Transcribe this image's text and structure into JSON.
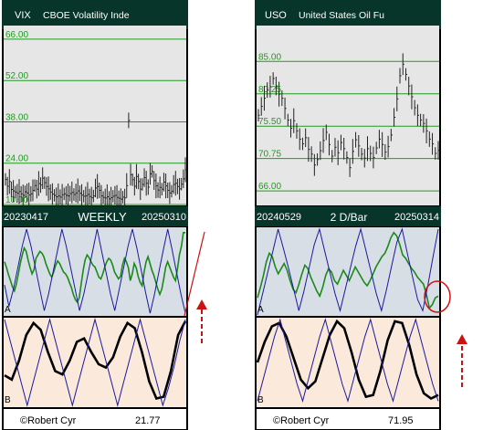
{
  "colors": {
    "price_bg": "#e6e6e6",
    "osc_bg": "#d8dee6",
    "cycle_bg": "#fbe9dc",
    "band": "#08352a",
    "grid": "#1f9c1f",
    "price_line": "#222222",
    "green_line": "#1a8a1a",
    "blue_line": "#1a1a9c",
    "cycle_line": "#000000",
    "annotation": "#cc1111"
  },
  "panels": [
    {
      "id": "vix",
      "symbol": "VIX",
      "name": "CBOE Volatility Inde",
      "start_date": "20230417",
      "period": "WEEKLY",
      "end_date": "20250310",
      "osc_label": "A",
      "cycle_label": "B",
      "credit": "©Robert Cyr",
      "last_value": "21.77"
    },
    {
      "id": "uso",
      "symbol": "USO",
      "name": "United States Oil Fu",
      "start_date": "20240529",
      "period": "2 D/Bar",
      "end_date": "20250314",
      "osc_label": "A",
      "cycle_label": "B",
      "credit": "©Robert Cyr",
      "last_value": "71.95"
    }
  ],
  "chart_data": [
    {
      "type": "bar",
      "panel": "vix",
      "ylim": [
        10,
        70
      ],
      "yticks": [
        "66.00",
        "52.00",
        "38.00",
        "24.00",
        "10.00"
      ],
      "ytick_values": [
        66,
        52,
        38,
        24,
        10
      ],
      "values": [
        18.5,
        16.2,
        17.8,
        15.1,
        14.6,
        14.2,
        13.8,
        14.4,
        13.6,
        13.1,
        14.3,
        13.9,
        13.2,
        13.6,
        14.8,
        16.4,
        15.2,
        17.1,
        16.6,
        18.9,
        17.4,
        16.1,
        15.3,
        14.2,
        13.5,
        13.1,
        12.6,
        12.9,
        12.5,
        13.3,
        13.6,
        13.1,
        12.9,
        13.7,
        14.1,
        13.4,
        13.9,
        14.6,
        13.8,
        13.2,
        12.8,
        12.9,
        13.4,
        12.7,
        12.3,
        12.9,
        15.6,
        16.1,
        14.8,
        12.9,
        12.4,
        12.2,
        12.6,
        11.9,
        12.3,
        12.8,
        13.1,
        12.4,
        12.1,
        11.8,
        12.5,
        12.2,
        16.4,
        38.5,
        20.1,
        18.4,
        16.2,
        19.5,
        17.8,
        15.2,
        16.8,
        19.1,
        17.2,
        15.9,
        20.4,
        21.2,
        18.1,
        16.3,
        14.9,
        15.8,
        15.2,
        17.6,
        16.3,
        14.8,
        13.9,
        14.5,
        16.8,
        17.2,
        16.1,
        15.3,
        16.9,
        18.7,
        21.77
      ]
    },
    {
      "type": "bar",
      "panel": "uso",
      "ylim": [
        64,
        90
      ],
      "yticks": [
        "85.00",
        "80.25",
        "75.50",
        "70.75",
        "66.00"
      ],
      "ytick_values": [
        85,
        80.25,
        75.5,
        70.75,
        66
      ],
      "values": [
        77.1,
        78.4,
        79.6,
        80.8,
        81.3,
        82.5,
        81.4,
        80.2,
        79.6,
        78.1,
        76.4,
        75.2,
        76.3,
        74.8,
        73.6,
        72.9,
        73.8,
        72.1,
        71.4,
        69.8,
        70.6,
        71.9,
        73.4,
        74.6,
        72.8,
        71.1,
        72.4,
        71.6,
        73.1,
        72.2,
        70.9,
        69.4,
        71.8,
        73.5,
        72.6,
        71.4,
        70.8,
        72.2,
        71.5,
        70.9,
        72.3,
        73.6,
        72.8,
        71.7,
        72.5,
        74.2,
        76.8,
        79.5,
        82.9,
        84.6,
        83.1,
        81.4,
        79.8,
        78.2,
        77.1,
        76.4,
        75.9,
        74.8,
        73.6,
        72.9,
        71.5,
        71.95
      ]
    },
    {
      "type": "line",
      "panel": "vix",
      "role": "oscillator",
      "ylim": [
        0,
        100
      ],
      "series": [
        {
          "color": "green",
          "values": [
            62,
            55,
            47,
            40,
            33,
            28,
            36,
            48,
            60,
            70,
            78,
            74,
            64,
            55,
            48,
            53,
            66,
            70,
            74,
            72,
            68,
            60,
            54,
            48,
            44,
            50,
            58,
            63,
            60,
            55,
            50,
            48,
            44,
            38,
            32,
            24,
            18,
            15,
            20,
            36,
            52,
            64,
            70,
            67,
            62,
            58,
            56,
            50,
            44,
            42,
            48,
            56,
            62,
            66,
            64,
            58,
            50,
            46,
            42,
            45,
            58,
            66,
            62,
            55,
            40,
            48,
            60,
            55,
            45,
            38,
            34,
            50,
            62,
            68,
            60,
            52,
            46,
            38,
            30,
            24,
            30,
            42,
            56,
            62,
            56,
            50,
            44,
            40,
            54,
            70,
            80,
            96,
            96
          ]
        },
        {
          "color": "blue",
          "values": [
            35,
            10,
            30,
            55,
            80,
            100,
            80,
            55,
            30,
            5,
            25,
            50,
            75,
            100,
            80,
            55,
            30,
            5,
            25,
            50,
            75,
            100,
            75,
            50,
            25,
            5,
            30,
            55,
            80,
            100,
            78,
            52,
            26,
            2,
            24,
            50,
            76,
            100,
            76,
            50,
            24,
            2
          ]
        }
      ]
    },
    {
      "type": "line",
      "panel": "uso",
      "role": "oscillator",
      "ylim": [
        0,
        100
      ],
      "series": [
        {
          "color": "green",
          "values": [
            20,
            32,
            46,
            62,
            72,
            68,
            56,
            48,
            54,
            60,
            52,
            40,
            30,
            26,
            36,
            48,
            58,
            54,
            44,
            36,
            28,
            22,
            32,
            46,
            54,
            50,
            40,
            36,
            44,
            52,
            46,
            40,
            48,
            56,
            50,
            44,
            38,
            34,
            40,
            48,
            56,
            62,
            68,
            72,
            80,
            90,
            96,
            92,
            82,
            70,
            66,
            60,
            54,
            50,
            44,
            40,
            36,
            24,
            8,
            12,
            20,
            22
          ]
        },
        {
          "color": "blue",
          "values": [
            0,
            25,
            50,
            75,
            100,
            78,
            55,
            30,
            5,
            28,
            55,
            82,
            100,
            75,
            50,
            25,
            5,
            30,
            55,
            80,
            100,
            75,
            50,
            25,
            5,
            30,
            58,
            85,
            100,
            72,
            45,
            18,
            5,
            35,
            68,
            100
          ]
        }
      ]
    },
    {
      "type": "line",
      "panel": "vix",
      "role": "cycle",
      "ylim": [
        0,
        100
      ],
      "series": [
        {
          "color": "black",
          "values": [
            35,
            30,
            52,
            82,
            96,
            88,
            62,
            40,
            36,
            52,
            74,
            78,
            62,
            48,
            44,
            56,
            80,
            96,
            90,
            62,
            28,
            8,
            10,
            40,
            82,
            98
          ]
        },
        {
          "color": "blue",
          "values": [
            100,
            75,
            50,
            25,
            0,
            25,
            50,
            75,
            100,
            75,
            50,
            25,
            0,
            25,
            50,
            75,
            100,
            75,
            50,
            25,
            0,
            25,
            50,
            75,
            100,
            75,
            50,
            25,
            0,
            20,
            45,
            75,
            100
          ]
        }
      ]
    },
    {
      "type": "line",
      "panel": "uso",
      "role": "cycle",
      "ylim": [
        0,
        100
      ],
      "series": [
        {
          "color": "black",
          "values": [
            50,
            74,
            92,
            96,
            80,
            55,
            30,
            20,
            28,
            55,
            82,
            98,
            90,
            62,
            30,
            10,
            12,
            40,
            76,
            98,
            96,
            70,
            36,
            14,
            8,
            12
          ]
        },
        {
          "color": "blue",
          "values": [
            5,
            30,
            55,
            80,
            100,
            75,
            50,
            25,
            5,
            30,
            55,
            80,
            100,
            75,
            50,
            25,
            5,
            30,
            55,
            80,
            100,
            75,
            50,
            25,
            5,
            30,
            55,
            80,
            100,
            75,
            50,
            25,
            5
          ]
        }
      ]
    }
  ]
}
